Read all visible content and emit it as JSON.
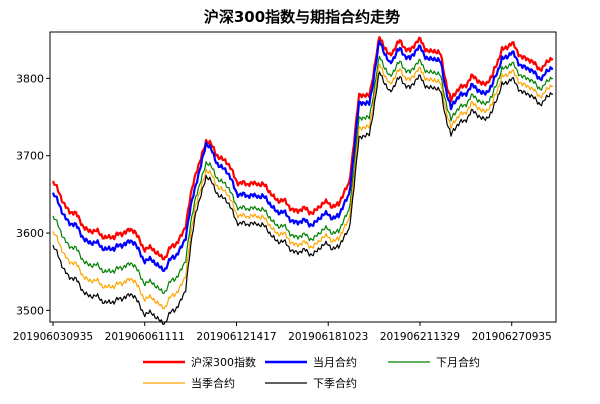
{
  "chart_data": {
    "type": "line",
    "title": "沪深300指数与期指合约走势",
    "xlabel": "",
    "ylabel": "",
    "ylim": [
      3485,
      3860
    ],
    "yticks": [
      3500,
      3600,
      3700,
      3800
    ],
    "xticks": [
      "201906030935",
      "201906061111",
      "201906121417",
      "201906181023",
      "201906211329",
      "201906270935"
    ],
    "grid": false,
    "legend_position": "bottom",
    "series_colors": [
      "#ff0000",
      "#0000ff",
      "#008000",
      "#ffa500",
      "#000000"
    ],
    "series": [
      {
        "name": "沪深300指数",
        "values": [
          3665,
          3640,
          3625,
          3610,
          3600,
          3598,
          3592,
          3605,
          3600,
          3582,
          3575,
          3570,
          3585,
          3610,
          3680,
          3718,
          3705,
          3690,
          3670,
          3660,
          3668,
          3655,
          3645,
          3635,
          3630,
          3628,
          3632,
          3640,
          3635,
          3665,
          3775,
          3780,
          3850,
          3832,
          3845,
          3838,
          3848,
          3835,
          3830,
          3770,
          3790,
          3800,
          3795,
          3798,
          3840,
          3842,
          3830,
          3818,
          3815,
          3825
        ]
      },
      {
        "name": "当月合约",
        "values": [
          3650,
          3625,
          3610,
          3595,
          3585,
          3583,
          3577,
          3590,
          3585,
          3567,
          3560,
          3555,
          3570,
          3595,
          3665,
          3715,
          3695,
          3678,
          3655,
          3645,
          3652,
          3640,
          3630,
          3620,
          3615,
          3612,
          3617,
          3625,
          3620,
          3650,
          3765,
          3770,
          3845,
          3822,
          3835,
          3828,
          3838,
          3825,
          3820,
          3760,
          3780,
          3788,
          3783,
          3786,
          3828,
          3830,
          3818,
          3806,
          3803,
          3813
        ]
      },
      {
        "name": "下月合约",
        "values": [
          3620,
          3595,
          3580,
          3566,
          3556,
          3554,
          3548,
          3561,
          3556,
          3538,
          3531,
          3526,
          3541,
          3566,
          3650,
          3690,
          3676,
          3660,
          3638,
          3628,
          3636,
          3622,
          3612,
          3602,
          3596,
          3594,
          3598,
          3606,
          3600,
          3630,
          3745,
          3752,
          3825,
          3805,
          3818,
          3810,
          3820,
          3808,
          3802,
          3745,
          3765,
          3775,
          3770,
          3772,
          3815,
          3816,
          3805,
          3793,
          3790,
          3800
        ]
      },
      {
        "name": "当季合约",
        "values": [
          3600,
          3575,
          3560,
          3546,
          3536,
          3534,
          3528,
          3541,
          3536,
          3518,
          3511,
          3506,
          3521,
          3546,
          3640,
          3680,
          3666,
          3650,
          3628,
          3618,
          3626,
          3612,
          3602,
          3592,
          3586,
          3584,
          3588,
          3596,
          3590,
          3618,
          3732,
          3740,
          3815,
          3795,
          3808,
          3800,
          3810,
          3798,
          3792,
          3735,
          3755,
          3765,
          3760,
          3762,
          3805,
          3806,
          3795,
          3783,
          3780,
          3790
        ]
      },
      {
        "name": "下季合约",
        "values": [
          3582,
          3555,
          3540,
          3526,
          3516,
          3514,
          3508,
          3521,
          3516,
          3498,
          3491,
          3486,
          3501,
          3528,
          3630,
          3672,
          3656,
          3640,
          3618,
          3608,
          3616,
          3602,
          3592,
          3582,
          3576,
          3574,
          3578,
          3586,
          3580,
          3605,
          3720,
          3730,
          3805,
          3785,
          3798,
          3790,
          3800,
          3788,
          3782,
          3725,
          3745,
          3755,
          3750,
          3752,
          3795,
          3796,
          3785,
          3773,
          3770,
          3780
        ]
      }
    ]
  }
}
